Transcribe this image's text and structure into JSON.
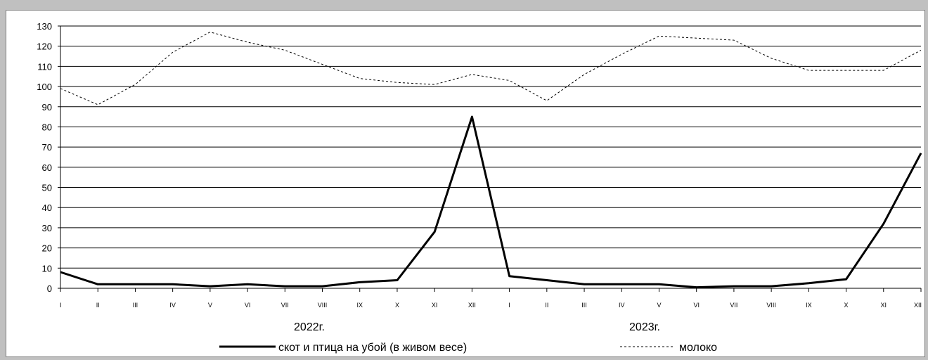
{
  "chart_data": {
    "type": "line",
    "title": "",
    "xlabel": "",
    "ylabel": "",
    "ylim": [
      0,
      130
    ],
    "yticks": [
      0,
      10,
      20,
      30,
      40,
      50,
      60,
      70,
      80,
      90,
      100,
      110,
      120,
      130
    ],
    "grid": "horizontal",
    "legend_position": "bottom",
    "categories": [
      "I",
      "II",
      "III",
      "IV",
      "V",
      "VI",
      "VII",
      "VIII",
      "IX",
      "X",
      "XI",
      "XII",
      "I",
      "II",
      "III",
      "IV",
      "V",
      "VI",
      "VII",
      "VIII",
      "IX",
      "X",
      "XI",
      "XII"
    ],
    "year_labels": [
      "2022г.",
      "2023г."
    ],
    "series": [
      {
        "name": "скот и птица на убой (в живом весе)",
        "style": "solid",
        "color": "#000000",
        "values": [
          8,
          2,
          2,
          2,
          1,
          2,
          1,
          1,
          3,
          4,
          28,
          85,
          6,
          4,
          2,
          2,
          2,
          0.5,
          1,
          1,
          2.5,
          4.5,
          32,
          67
        ]
      },
      {
        "name": "молоко",
        "style": "dotted",
        "color": "#000000",
        "values": [
          99,
          91,
          101,
          117,
          127,
          122,
          118,
          111,
          104,
          102,
          101,
          106,
          103,
          93,
          106,
          116,
          125,
          124,
          123,
          114,
          108,
          108,
          108,
          118
        ]
      }
    ]
  }
}
